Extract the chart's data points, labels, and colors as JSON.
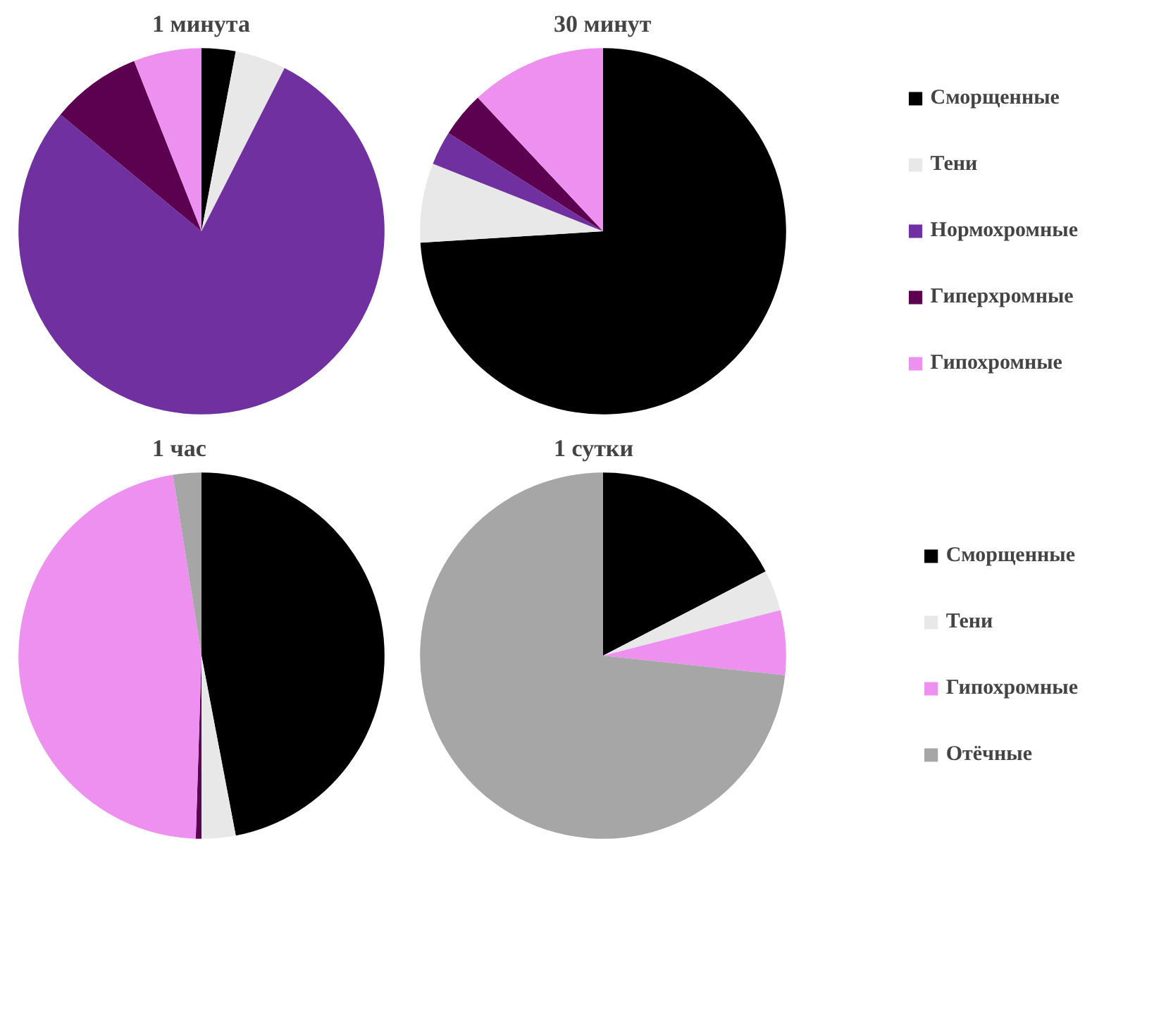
{
  "chart_data": [
    {
      "type": "pie",
      "title": "1 минута",
      "categories": [
        null,
        null,
        null,
        null,
        null
      ],
      "values": [
        3,
        4.5,
        78.5,
        8,
        6
      ],
      "colors": [
        "#000000",
        "#e8e8e8",
        "#7030a0",
        "#5c0050",
        "#ee90f0"
      ],
      "legend": false
    },
    {
      "type": "pie",
      "title": "30 минут",
      "categories": [
        "Сморщенные",
        "Тени",
        "Нормохромные",
        "Гиперхромные",
        "Гипохромные"
      ],
      "values": [
        74,
        7,
        3,
        4,
        12
      ],
      "colors": [
        "#000000",
        "#e8e8e8",
        "#7030a0",
        "#5c0050",
        "#ee90f0"
      ],
      "legend": "right"
    },
    {
      "type": "pie",
      "title": "1 час",
      "categories": [
        null,
        null,
        null,
        null,
        null
      ],
      "values": [
        47,
        3,
        0.5,
        47,
        2.5
      ],
      "colors": [
        "#000000",
        "#e8e8e8",
        "#5c0050",
        "#ee90f0",
        "#a6a6a6"
      ],
      "legend": false
    },
    {
      "type": "pie",
      "title": "1 сутки",
      "categories": [
        "Сморщенные",
        "Тени",
        "Гипохромные",
        "Отёчные"
      ],
      "values": [
        17.4,
        3.6,
        5.7,
        73.3
      ],
      "colors": [
        "#000000",
        "#e8e8e8",
        "#ee90f0",
        "#a6a6a6"
      ],
      "legend": "right"
    }
  ]
}
